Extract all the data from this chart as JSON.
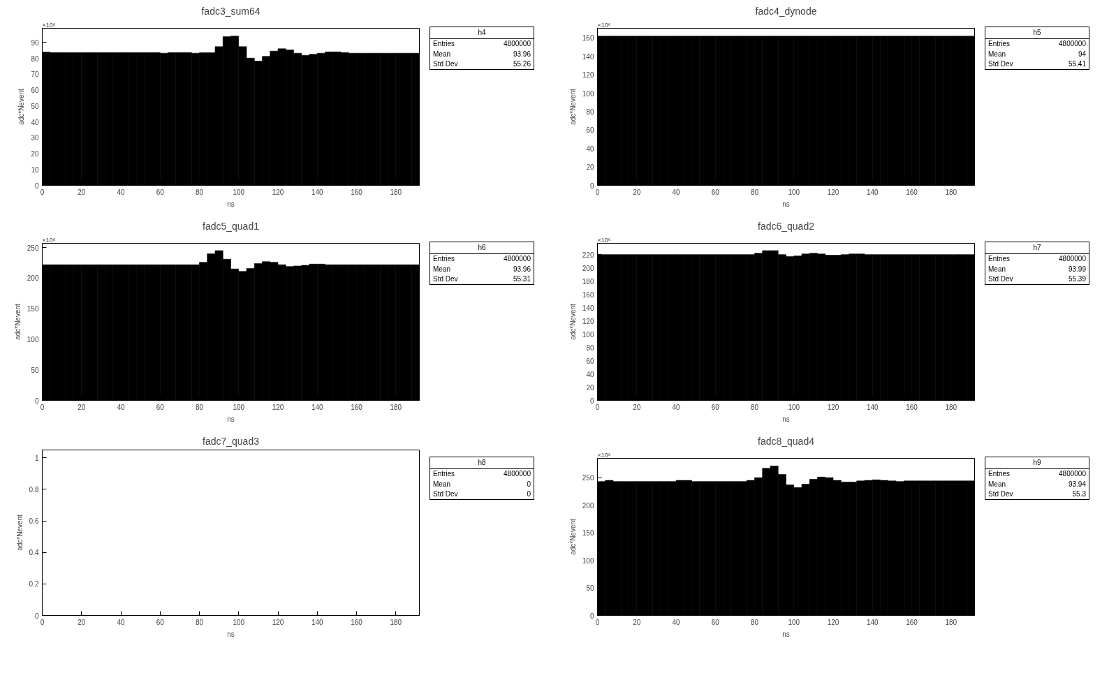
{
  "chart_data": [
    {
      "type": "histogram",
      "title": "fadc3_sum64",
      "xlabel": "ns",
      "ylabel": "adc*Nevent",
      "color": "#000000",
      "grid": false,
      "bins": [
        0,
        4,
        8,
        12,
        16,
        20,
        24,
        28,
        32,
        36,
        40,
        44,
        48,
        52,
        56,
        60,
        64,
        68,
        72,
        76,
        80,
        84,
        88,
        92,
        96,
        100,
        104,
        108,
        112,
        116,
        120,
        124,
        128,
        132,
        136,
        140,
        144,
        148,
        152,
        156,
        160,
        164,
        168,
        172,
        176,
        180,
        184,
        188,
        192
      ],
      "values": [
        84.0,
        83.7,
        83.7,
        83.7,
        83.7,
        83.7,
        83.7,
        83.7,
        83.7,
        83.7,
        83.7,
        83.7,
        83.7,
        83.7,
        83.7,
        83.3,
        83.7,
        83.7,
        83.7,
        83.3,
        83.6,
        83.6,
        87.4,
        93.7,
        94.1,
        87.4,
        80.2,
        78.3,
        81.3,
        84.6,
        86.1,
        85.4,
        83.3,
        82.0,
        82.6,
        83.3,
        84.1,
        84.1,
        83.7,
        83.3,
        83.3,
        83.3,
        83.3,
        83.3,
        83.3,
        83.3,
        83.3,
        83.3
      ],
      "xlim": [
        0,
        192
      ],
      "xticks": [
        0,
        20,
        40,
        60,
        80,
        100,
        120,
        140,
        160,
        180
      ],
      "ylim": [
        0,
        99
      ],
      "yticks": [
        0,
        10,
        20,
        30,
        40,
        50,
        60,
        70,
        80,
        90
      ],
      "annotations": [
        "×10⁶",
        "h4",
        "Entries 4800000",
        "Mean 93.96",
        "Std Dev 55.26"
      ]
    },
    {
      "type": "histogram",
      "title": "fadc4_dynode",
      "xlabel": "ns",
      "ylabel": "adc*Nevent",
      "color": "#000000",
      "grid": false,
      "bins": [
        0,
        4,
        8,
        12,
        16,
        20,
        24,
        28,
        32,
        36,
        40,
        44,
        48,
        52,
        56,
        60,
        64,
        68,
        72,
        76,
        80,
        84,
        88,
        92,
        96,
        100,
        104,
        108,
        112,
        116,
        120,
        124,
        128,
        132,
        136,
        140,
        144,
        148,
        152,
        156,
        160,
        164,
        168,
        172,
        176,
        180,
        184,
        188,
        192
      ],
      "values": [
        162,
        162,
        162,
        162,
        162,
        162,
        162,
        162,
        162,
        162,
        162,
        162,
        162,
        162,
        162,
        162,
        162,
        162,
        162,
        162,
        162,
        162,
        162,
        162,
        162,
        162,
        162,
        162,
        162,
        162,
        162,
        162,
        162,
        162,
        162,
        162,
        162,
        162,
        162,
        162,
        162,
        162,
        162,
        162,
        162,
        162,
        162,
        162
      ],
      "xlim": [
        0,
        192
      ],
      "xticks": [
        0,
        20,
        40,
        60,
        80,
        100,
        120,
        140,
        160,
        180
      ],
      "ylim": [
        0,
        170.5
      ],
      "yticks": [
        0,
        20,
        40,
        60,
        80,
        100,
        120,
        140,
        160
      ],
      "annotations": [
        "×10⁶",
        "h5",
        "Entries 4800000",
        "Mean 94",
        "Std Dev 55.41"
      ]
    },
    {
      "type": "histogram",
      "title": "fadc5_quad1",
      "xlabel": "ns",
      "ylabel": "adc*Nevent",
      "color": "#000000",
      "grid": false,
      "bins": [
        0,
        4,
        8,
        12,
        16,
        20,
        24,
        28,
        32,
        36,
        40,
        44,
        48,
        52,
        56,
        60,
        64,
        68,
        72,
        76,
        80,
        84,
        88,
        92,
        96,
        100,
        104,
        108,
        112,
        116,
        120,
        124,
        128,
        132,
        136,
        140,
        144,
        148,
        152,
        156,
        160,
        164,
        168,
        172,
        176,
        180,
        184,
        188,
        192
      ],
      "values": [
        222,
        222,
        222,
        222,
        222,
        222,
        222,
        222,
        222,
        222,
        222,
        222,
        222,
        222,
        222,
        222,
        222,
        222,
        222,
        222,
        226,
        240,
        245,
        231,
        215,
        211,
        216,
        224,
        227,
        226,
        222,
        219,
        220,
        221,
        223,
        223,
        222,
        222,
        222,
        222,
        222,
        222,
        222,
        222,
        222,
        222,
        222,
        222
      ],
      "xlim": [
        0,
        192
      ],
      "xticks": [
        0,
        20,
        40,
        60,
        80,
        100,
        120,
        140,
        160,
        180
      ],
      "ylim": [
        0,
        257
      ],
      "yticks": [
        0,
        50,
        100,
        150,
        200,
        250
      ],
      "annotations": [
        "×10⁶",
        "h6",
        "Entries 4800000",
        "Mean 93.96",
        "Std Dev 55.31"
      ]
    },
    {
      "type": "histogram",
      "title": "fadc6_quad2",
      "xlabel": "ns",
      "ylabel": "adc*Nevent",
      "color": "#000000",
      "grid": false,
      "bins": [
        0,
        4,
        8,
        12,
        16,
        20,
        24,
        28,
        32,
        36,
        40,
        44,
        48,
        52,
        56,
        60,
        64,
        68,
        72,
        76,
        80,
        84,
        88,
        92,
        96,
        100,
        104,
        108,
        112,
        116,
        120,
        124,
        128,
        132,
        136,
        140,
        144,
        148,
        152,
        156,
        160,
        164,
        168,
        172,
        176,
        180,
        184,
        188,
        192
      ],
      "values": [
        220,
        220,
        220,
        220,
        220,
        220,
        220,
        220,
        220,
        220,
        220,
        220,
        220,
        220,
        220,
        220,
        220,
        220,
        220,
        220,
        222,
        226,
        226,
        220,
        217,
        218,
        221,
        222,
        221,
        219,
        219,
        220,
        221,
        221,
        220,
        220,
        220,
        220,
        220,
        220,
        220,
        220,
        220,
        220,
        220,
        220,
        220,
        220
      ],
      "xlim": [
        0,
        192
      ],
      "xticks": [
        0,
        20,
        40,
        60,
        80,
        100,
        120,
        140,
        160,
        180
      ],
      "ylim": [
        0,
        237
      ],
      "yticks": [
        0,
        20,
        40,
        60,
        80,
        100,
        120,
        140,
        160,
        180,
        200,
        220
      ],
      "annotations": [
        "×10⁶",
        "h7",
        "Entries 4800000",
        "Mean 93.99",
        "Std Dev 55.39"
      ]
    },
    {
      "type": "histogram",
      "title": "fadc7_quad3",
      "xlabel": "ns",
      "ylabel": "adc*Nevent",
      "color": "#000000",
      "grid": false,
      "bins": [
        0,
        4,
        8,
        12,
        16,
        20,
        24,
        28,
        32,
        36,
        40,
        44,
        48,
        52,
        56,
        60,
        64,
        68,
        72,
        76,
        80,
        84,
        88,
        92,
        96,
        100,
        104,
        108,
        112,
        116,
        120,
        124,
        128,
        132,
        136,
        140,
        144,
        148,
        152,
        156,
        160,
        164,
        168,
        172,
        176,
        180,
        184,
        188,
        192
      ],
      "values": [
        0,
        0,
        0,
        0,
        0,
        0,
        0,
        0,
        0,
        0,
        0,
        0,
        0,
        0,
        0,
        0,
        0,
        0,
        0,
        0,
        0,
        0,
        0,
        0,
        0,
        0,
        0,
        0,
        0,
        0,
        0,
        0,
        0,
        0,
        0,
        0,
        0,
        0,
        0,
        0,
        0,
        0,
        0,
        0,
        0,
        0,
        0,
        0
      ],
      "xlim": [
        0,
        192
      ],
      "xticks": [
        0,
        20,
        40,
        60,
        80,
        100,
        120,
        140,
        160,
        180
      ],
      "ylim": [
        0,
        1.05
      ],
      "yticks": [
        0,
        0.2,
        0.4,
        0.6,
        0.8,
        1
      ],
      "annotations": [
        "h8",
        "Entries 4800000",
        "Mean 0",
        "Std Dev 0"
      ]
    },
    {
      "type": "histogram",
      "title": "fadc8_quad4",
      "xlabel": "ns",
      "ylabel": "adc*Nevent",
      "color": "#000000",
      "grid": false,
      "bins": [
        0,
        4,
        8,
        12,
        16,
        20,
        24,
        28,
        32,
        36,
        40,
        44,
        48,
        52,
        56,
        60,
        64,
        68,
        72,
        76,
        80,
        84,
        88,
        92,
        96,
        100,
        104,
        108,
        112,
        116,
        120,
        124,
        128,
        132,
        136,
        140,
        144,
        148,
        152,
        156,
        160,
        164,
        168,
        172,
        176,
        180,
        184,
        188,
        192
      ],
      "values": [
        243,
        245,
        243,
        243,
        243,
        243,
        243,
        243,
        243,
        243,
        245,
        245,
        243,
        243,
        243,
        243,
        243,
        243,
        243,
        245,
        250,
        267,
        271,
        256,
        237,
        232,
        238,
        247,
        251,
        250,
        245,
        242,
        242,
        244,
        245,
        246,
        245,
        244,
        243,
        244,
        244,
        244,
        244,
        244,
        244,
        244,
        244,
        244
      ],
      "xlim": [
        0,
        192
      ],
      "xticks": [
        0,
        20,
        40,
        60,
        80,
        100,
        120,
        140,
        160,
        180
      ],
      "ylim": [
        0,
        285
      ],
      "yticks": [
        0,
        50,
        100,
        150,
        200,
        250
      ],
      "annotations": [
        "×10⁶",
        "h9",
        "Entries 4800000",
        "Mean 93.94",
        "Std Dev 55.3"
      ]
    }
  ]
}
